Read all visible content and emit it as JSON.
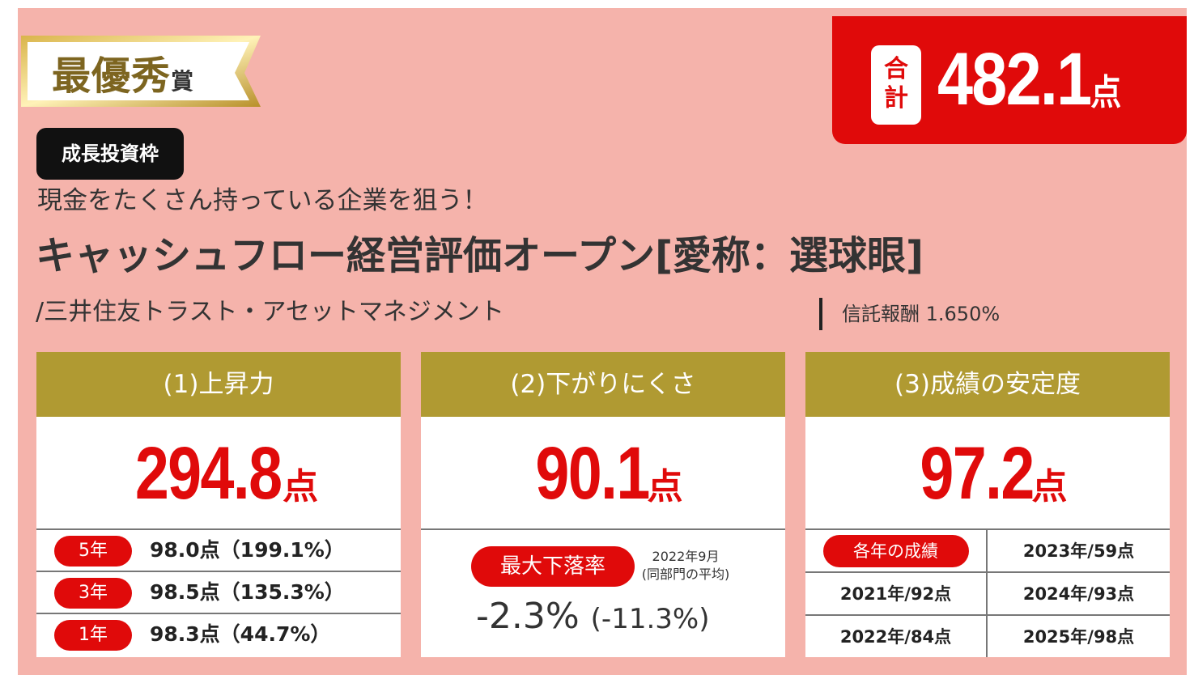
{
  "award": {
    "main": "最優秀",
    "small": "賞"
  },
  "total": {
    "label_top": "合",
    "label_bottom": "計",
    "value": "482.1",
    "unit": "点"
  },
  "tag": "成長投資枠",
  "subtitle": "現金をたくさん持っている企業を狙う！",
  "fund_name": "キャッシュフロー経営評価オープン[愛称：選球眼]",
  "company": "/三井住友トラスト・アセットマネジメント",
  "fee": "信託報酬 1.650%",
  "panel1": {
    "title": "(1)上昇力",
    "score": "294.8",
    "unit": "点",
    "rows": [
      {
        "label": "5年",
        "value": "98.0点（199.1%）"
      },
      {
        "label": "3年",
        "value": "98.5点（135.3%）"
      },
      {
        "label": "1年",
        "value": "98.3点（44.7%）"
      }
    ]
  },
  "panel2": {
    "title": "(2)下がりにくさ",
    "score": "90.1",
    "unit": "点",
    "drawdown_label": "最大下落率",
    "date": "2022年9月",
    "avg_note": "(同部門の平均)",
    "value": "-2.3%",
    "avg_value": "(-11.3%)"
  },
  "panel3": {
    "title": "(3)成績の安定度",
    "score": "97.2",
    "unit": "点",
    "pill": "各年の成績",
    "cells": [
      "2023年/59点",
      "2021年/92点",
      "2024年/93点",
      "2022年/84点",
      "2025年/98点"
    ]
  },
  "colors": {
    "background": "#f5b3ab",
    "accent_red": "#e00a0a",
    "gold": "#b09a32"
  }
}
